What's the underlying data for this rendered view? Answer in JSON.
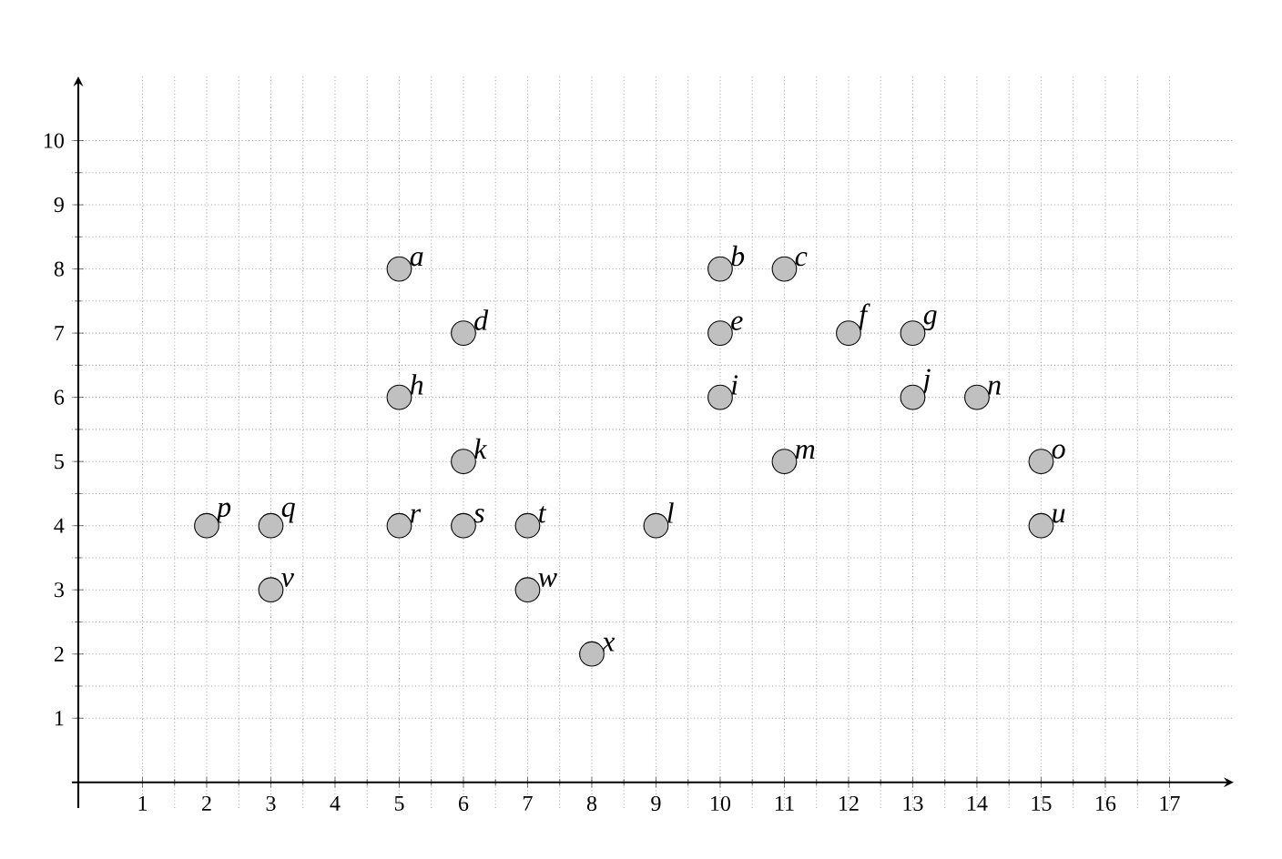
{
  "chart_data": {
    "type": "scatter",
    "x": [
      5,
      10,
      11,
      6,
      10,
      12,
      13,
      5,
      10,
      13,
      14,
      6,
      11,
      15,
      2,
      3,
      5,
      6,
      7,
      9,
      15,
      3,
      7,
      8
    ],
    "values": [
      8,
      8,
      8,
      7,
      7,
      7,
      7,
      6,
      6,
      6,
      6,
      5,
      5,
      5,
      4,
      4,
      4,
      4,
      4,
      4,
      4,
      3,
      3,
      2
    ],
    "color": "#c0c0c0",
    "marker": "circle",
    "annotations": [
      {
        "text": "a",
        "x": 5,
        "y": 8
      },
      {
        "text": "b",
        "x": 10,
        "y": 8
      },
      {
        "text": "c",
        "x": 11,
        "y": 8
      },
      {
        "text": "d",
        "x": 6,
        "y": 7
      },
      {
        "text": "e",
        "x": 10,
        "y": 7
      },
      {
        "text": "f",
        "x": 12,
        "y": 7
      },
      {
        "text": "g",
        "x": 13,
        "y": 7
      },
      {
        "text": "h",
        "x": 5,
        "y": 6
      },
      {
        "text": "i",
        "x": 10,
        "y": 6
      },
      {
        "text": "j",
        "x": 13,
        "y": 6
      },
      {
        "text": "n",
        "x": 14,
        "y": 6
      },
      {
        "text": "k",
        "x": 6,
        "y": 5
      },
      {
        "text": "m",
        "x": 11,
        "y": 5
      },
      {
        "text": "o",
        "x": 15,
        "y": 5
      },
      {
        "text": "p",
        "x": 2,
        "y": 4
      },
      {
        "text": "q",
        "x": 3,
        "y": 4
      },
      {
        "text": "r",
        "x": 5,
        "y": 4
      },
      {
        "text": "s",
        "x": 6,
        "y": 4
      },
      {
        "text": "t",
        "x": 7,
        "y": 4
      },
      {
        "text": "l",
        "x": 9,
        "y": 4
      },
      {
        "text": "u",
        "x": 15,
        "y": 4
      },
      {
        "text": "v",
        "x": 3,
        "y": 3
      },
      {
        "text": "w",
        "x": 7,
        "y": 3
      },
      {
        "text": "x",
        "x": 8,
        "y": 2
      }
    ],
    "xlim": [
      -0.1,
      18
    ],
    "ylim": [
      -0.4,
      11
    ],
    "xticks": [
      1,
      2,
      3,
      4,
      5,
      6,
      7,
      8,
      9,
      10,
      11,
      12,
      13,
      14,
      15,
      16,
      17
    ],
    "yticks": [
      1,
      2,
      3,
      4,
      5,
      6,
      7,
      8,
      9,
      10
    ],
    "grid": true
  }
}
